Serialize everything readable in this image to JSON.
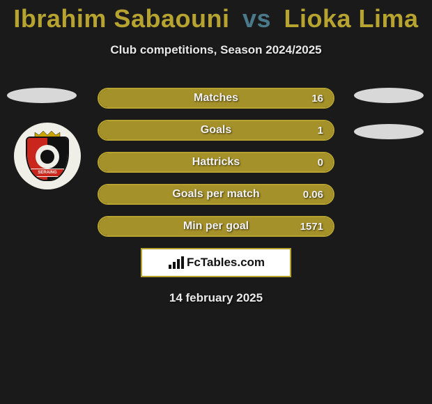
{
  "title": {
    "player1": "Ibrahim Sabaouni",
    "vs": "vs",
    "player2": "Lioka Lima",
    "player_color": "#b7a32f",
    "vs_color": "#4a7a8a"
  },
  "subtitle": "Club competitions, Season 2024/2025",
  "side_ellipse_color": "#d8d8d8",
  "badge": {
    "bg": "#efefe8",
    "shield_left": "#c9261d",
    "shield_right": "#111111",
    "banner_text": "SERAING"
  },
  "stats": {
    "bar_border_color": "#b7a32f",
    "bar_fill_color": "#a59129",
    "bar_bg_color": "#1a1a1a",
    "label_color": "#f2f2f2",
    "items": [
      {
        "label": "Matches",
        "value": "16",
        "fill_pct": 100
      },
      {
        "label": "Goals",
        "value": "1",
        "fill_pct": 100
      },
      {
        "label": "Hattricks",
        "value": "0",
        "fill_pct": 100
      },
      {
        "label": "Goals per match",
        "value": "0.06",
        "fill_pct": 100
      },
      {
        "label": "Min per goal",
        "value": "1571",
        "fill_pct": 100
      }
    ]
  },
  "brand": {
    "text": "FcTables.com",
    "box_bg": "#ffffff",
    "box_border": "#b7a32f",
    "text_color": "#111111"
  },
  "date": "14 february 2025",
  "background_color": "#1a1a1a"
}
